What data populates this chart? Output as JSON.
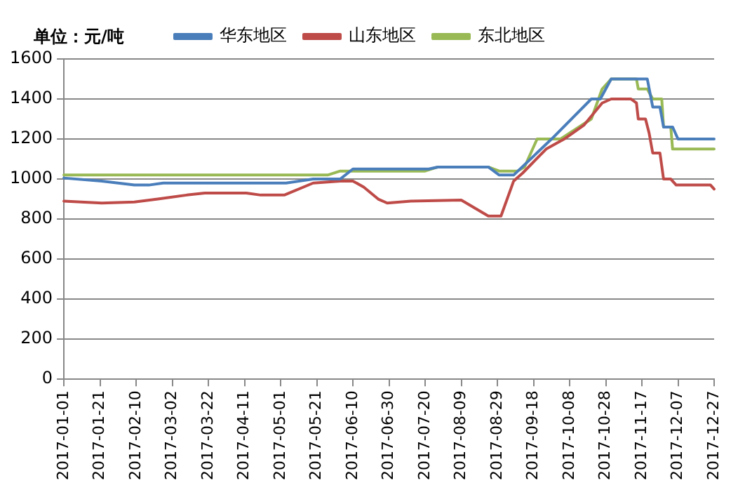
{
  "chart_data": {
    "type": "line",
    "ylabel": "单位：元/吨",
    "legend": "top",
    "grid": "y",
    "marker": "none",
    "line_style": "solid",
    "xlim": [
      "2017-01-01",
      "2017-12-27"
    ],
    "xticks": [
      "2017-01-01",
      "2017-01-21",
      "2017-02-10",
      "2017-03-02",
      "2017-03-22",
      "2017-04-11",
      "2017-05-01",
      "2017-05-21",
      "2017-06-10",
      "2017-06-30",
      "2017-07-20",
      "2017-08-09",
      "2017-08-29",
      "2017-09-18",
      "2017-10-08",
      "2017-10-28",
      "2017-11-17",
      "2017-12-07",
      "2017-12-27"
    ],
    "ylim": [
      0,
      1600
    ],
    "yticks": [
      0,
      200,
      400,
      600,
      800,
      1000,
      1200,
      1400,
      1600
    ],
    "series": [
      {
        "name": "华东地区",
        "color": "#4a7ebb",
        "x": [
          "2017-01-01",
          "2017-01-22",
          "2017-02-09",
          "2017-02-17",
          "2017-02-25",
          "2017-05-04",
          "2017-05-19",
          "2017-06-03",
          "2017-06-10",
          "2017-07-22",
          "2017-07-27",
          "2017-08-24",
          "2017-08-30",
          "2017-09-07",
          "2017-09-28",
          "2017-10-20",
          "2017-10-25",
          "2017-10-31",
          "2017-11-20",
          "2017-11-23",
          "2017-11-27",
          "2017-11-29",
          "2017-12-04",
          "2017-12-07",
          "2017-12-27"
        ],
        "values": [
          1005,
          990,
          970,
          970,
          980,
          980,
          1000,
          1000,
          1050,
          1050,
          1060,
          1060,
          1020,
          1020,
          1200,
          1400,
          1400,
          1500,
          1500,
          1360,
          1360,
          1260,
          1260,
          1200,
          1200
        ]
      },
      {
        "name": "山东地区",
        "color": "#be4b48",
        "x": [
          "2017-01-01",
          "2017-01-22",
          "2017-02-09",
          "2017-02-22",
          "2017-03-10",
          "2017-03-20",
          "2017-04-12",
          "2017-04-20",
          "2017-05-03",
          "2017-05-19",
          "2017-06-03",
          "2017-06-10",
          "2017-06-16",
          "2017-06-24",
          "2017-06-29",
          "2017-07-12",
          "2017-08-09",
          "2017-08-24",
          "2017-08-31",
          "2017-09-07",
          "2017-09-12",
          "2017-09-25",
          "2017-10-05",
          "2017-10-16",
          "2017-10-26",
          "2017-10-31",
          "2017-11-11",
          "2017-11-14",
          "2017-11-15",
          "2017-11-19",
          "2017-11-21",
          "2017-11-23",
          "2017-11-27",
          "2017-11-29",
          "2017-12-03",
          "2017-12-06",
          "2017-12-25",
          "2017-12-27"
        ],
        "values": [
          890,
          880,
          885,
          900,
          920,
          930,
          930,
          920,
          920,
          980,
          990,
          990,
          960,
          900,
          880,
          890,
          895,
          815,
          815,
          990,
          1030,
          1150,
          1200,
          1270,
          1380,
          1400,
          1400,
          1380,
          1300,
          1300,
          1230,
          1130,
          1130,
          1000,
          1000,
          970,
          970,
          950
        ]
      },
      {
        "name": "东北地区",
        "color": "#98b954",
        "x": [
          "2017-01-01",
          "2017-05-27",
          "2017-06-03",
          "2017-07-20",
          "2017-07-27",
          "2017-08-24",
          "2017-08-30",
          "2017-09-09",
          "2017-09-13",
          "2017-09-20",
          "2017-10-03",
          "2017-10-20",
          "2017-10-26",
          "2017-10-31",
          "2017-11-14",
          "2017-11-15",
          "2017-11-20",
          "2017-11-23",
          "2017-11-28",
          "2017-11-29",
          "2017-12-03",
          "2017-12-04",
          "2017-12-27"
        ],
        "values": [
          1020,
          1020,
          1040,
          1040,
          1060,
          1060,
          1040,
          1040,
          1060,
          1200,
          1200,
          1300,
          1450,
          1500,
          1500,
          1450,
          1450,
          1400,
          1400,
          1260,
          1260,
          1150,
          1150
        ]
      }
    ]
  }
}
